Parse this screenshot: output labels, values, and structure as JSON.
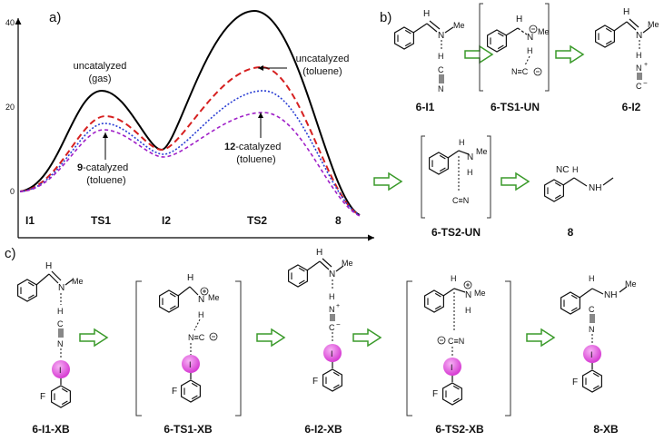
{
  "panel_labels": {
    "a": "a)",
    "b": "b)",
    "c": "c)"
  },
  "energy_profile": {
    "y_ticks": [
      "40",
      "20",
      "0"
    ],
    "x_labels": [
      "I1",
      "TS1",
      "I2",
      "TS2",
      "8"
    ],
    "annotations": {
      "gas_line1": "uncatalyzed",
      "gas_line2": "(gas)",
      "tol_line1": "uncatalyzed",
      "tol_line2": "(toluene)",
      "cat9_num": "9",
      "cat9_line1": "-catalyzed",
      "cat9_line2": "(toluene)",
      "cat12_num": "12",
      "cat12_line1": "-catalyzed",
      "cat12_line2": "(toluene)"
    },
    "colors": {
      "gas": "#000000",
      "toluene": "#d62020",
      "cat9": "#2b3fd4",
      "cat12": "#a020c8"
    }
  },
  "compound_labels": {
    "b": [
      "6-I1",
      "6-TS1-UN",
      "6-I2",
      "6-TS2-UN",
      "8"
    ],
    "c": [
      "6-I1-XB",
      "6-TS1-XB",
      "6-I2-XB",
      "6-TS2-XB",
      "8-XB"
    ]
  },
  "atoms": {
    "H": "H",
    "N": "N",
    "C": "C",
    "I": "I",
    "F": "F",
    "Me": "Me",
    "NC": "NC",
    "cyanide_triple": "C≡N",
    "isocyanide": "N≡C",
    "NH": "NH"
  },
  "colors": {
    "arrow": "#3a9a2a",
    "iodine": "#e35ce0"
  }
}
